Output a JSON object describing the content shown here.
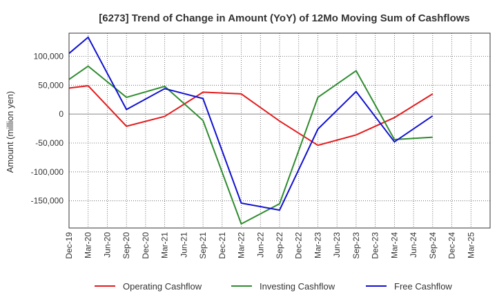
{
  "chart_data": {
    "type": "line",
    "title": "[6273]  Trend of Change in Amount (YoY) of 12Mo Moving Sum of Cashflows",
    "xlabel": "",
    "ylabel": "Amount (million yen)",
    "categories": [
      "Dec-19",
      "Mar-20",
      "Jun-20",
      "Sep-20",
      "Dec-20",
      "Mar-21",
      "Jun-21",
      "Sep-21",
      "Dec-21",
      "Mar-22",
      "Jun-22",
      "Sep-22",
      "Dec-22",
      "Mar-23",
      "Jun-23",
      "Sep-23",
      "Dec-23",
      "Mar-24",
      "Jun-24",
      "Sep-24",
      "Dec-24",
      "Mar-25"
    ],
    "ylim": [
      -197000,
      140000
    ],
    "yticks": [
      100000,
      50000,
      0,
      -50000,
      -100000,
      -150000
    ],
    "ytick_labels": [
      "100,000",
      "50,000",
      "0",
      "-50,000",
      "-100,000",
      "-150,000"
    ],
    "grid": true,
    "legend_position": "bottom",
    "series": [
      {
        "name": "Operating Cashflow",
        "color": "#e41a1c",
        "values": [
          45000,
          49000,
          null,
          -21000,
          null,
          -4000,
          null,
          38000,
          null,
          35000,
          null,
          -12000,
          null,
          -54000,
          null,
          -36000,
          null,
          -6000,
          null,
          35000,
          null,
          null
        ]
      },
      {
        "name": "Investing Cashflow",
        "color": "#2e8b2e",
        "values": [
          60000,
          83000,
          null,
          29000,
          null,
          48000,
          null,
          -11000,
          null,
          -190000,
          null,
          -155000,
          null,
          29000,
          null,
          75000,
          null,
          -44000,
          null,
          -40000,
          null,
          null
        ]
      },
      {
        "name": "Free Cashflow",
        "color": "#1010d0",
        "values": [
          105000,
          133000,
          null,
          8000,
          null,
          44000,
          null,
          27000,
          null,
          -154000,
          null,
          -166000,
          null,
          -26000,
          null,
          39000,
          null,
          -48000,
          null,
          -3000,
          null,
          null
        ]
      }
    ]
  }
}
